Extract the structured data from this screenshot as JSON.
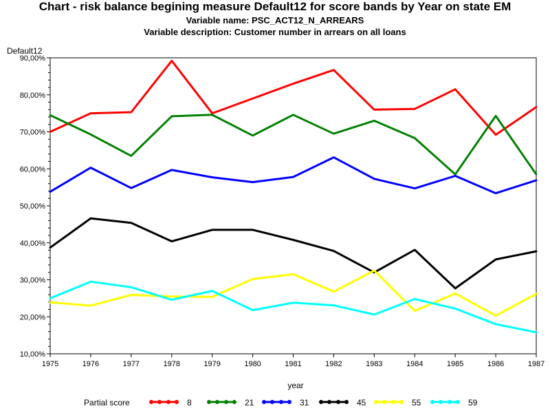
{
  "page": {
    "title": "Chart - risk balance begining measure Default12 for score bands by Year on state EM",
    "subtitle1": "Variable name: PSC_ACT12_N_ARREARS",
    "subtitle2": "Variable description: Customer number in arrears on all loans"
  },
  "chart_data": {
    "type": "line",
    "title": "Chart - risk balance begining measure Default12 for score bands by Year on state EM",
    "xlabel": "year",
    "ylabel": "Default12",
    "x": [
      1975,
      1976,
      1977,
      1978,
      1979,
      1980,
      1981,
      1982,
      1983,
      1984,
      1985,
      1986,
      1987
    ],
    "xlim": [
      1975,
      1987
    ],
    "ylim": [
      10,
      90
    ],
    "yticks": [
      10,
      20,
      30,
      40,
      50,
      60,
      70,
      80,
      90
    ],
    "ytick_labels": [
      "10,00%",
      "20,00%",
      "30,00%",
      "40,00%",
      "50,00%",
      "60,00%",
      "70,00%",
      "80,00%",
      "90,00%"
    ],
    "grid": false,
    "legend_title": "Partial score",
    "legend_position": "bottom",
    "series": [
      {
        "name": "8",
        "color": "#ff0000",
        "values": [
          70.0,
          75.0,
          75.3,
          89.2,
          75.0,
          79.0,
          83.0,
          86.7,
          76.0,
          76.2,
          81.5,
          69.2,
          76.7
        ]
      },
      {
        "name": "21",
        "color": "#008000",
        "values": [
          74.5,
          69.3,
          63.5,
          74.2,
          74.6,
          69.0,
          74.6,
          69.5,
          73.0,
          68.3,
          58.5,
          74.3,
          58.5
        ]
      },
      {
        "name": "31",
        "color": "#0000ff",
        "values": [
          53.8,
          60.3,
          54.8,
          59.7,
          57.7,
          56.4,
          57.8,
          63.1,
          57.3,
          54.7,
          58.1,
          53.4,
          56.9
        ]
      },
      {
        "name": "45",
        "color": "#000000",
        "values": [
          38.7,
          46.6,
          45.4,
          40.4,
          43.5,
          43.5,
          40.8,
          37.8,
          32.0,
          38.1,
          27.7,
          35.5,
          37.7
        ]
      },
      {
        "name": "55",
        "color": "#ffff00",
        "values": [
          23.9,
          23.0,
          25.9,
          25.5,
          25.4,
          30.2,
          31.5,
          26.8,
          32.5,
          21.6,
          26.3,
          20.3,
          26.2
        ]
      },
      {
        "name": "59",
        "color": "#00ffff",
        "values": [
          25.0,
          29.5,
          28.0,
          24.6,
          27.0,
          21.8,
          23.8,
          23.1,
          20.6,
          24.8,
          22.2,
          18.0,
          15.8
        ]
      }
    ]
  }
}
